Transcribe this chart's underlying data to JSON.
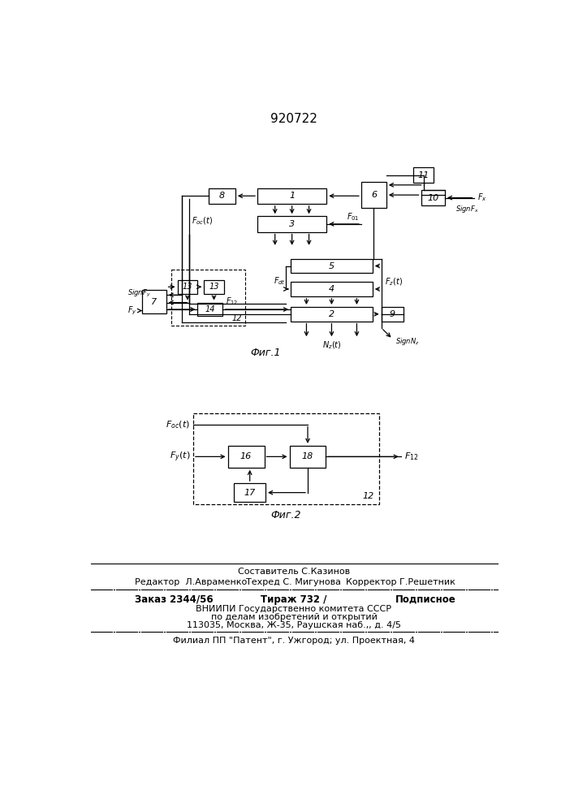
{
  "title": "920722",
  "bg": "#ffffff",
  "fig1_caption": "Фиг.1",
  "fig2_caption": "Фиг.2"
}
